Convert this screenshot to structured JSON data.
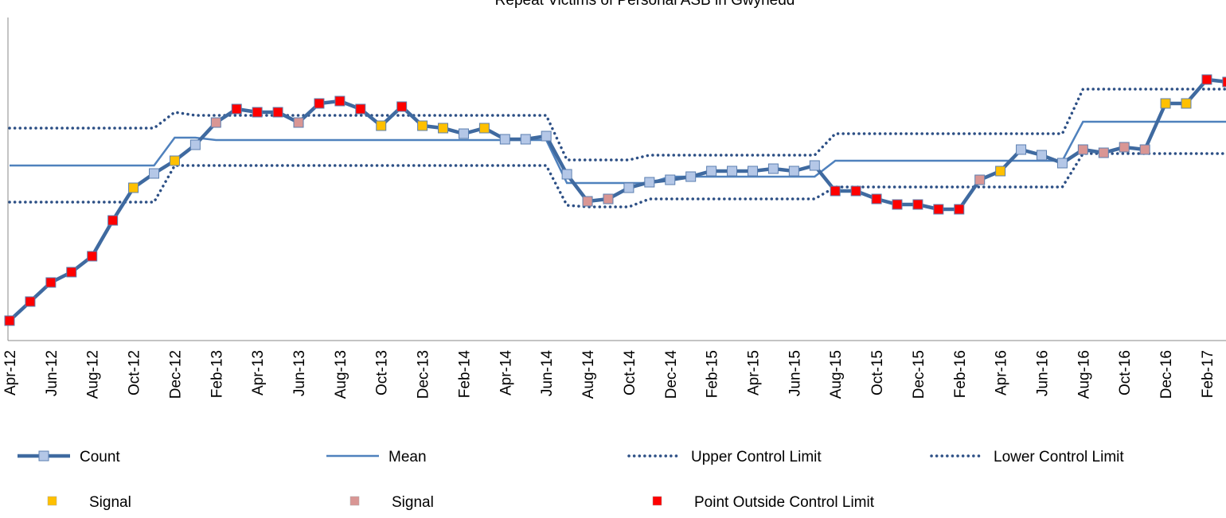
{
  "chart_data": {
    "type": "line",
    "title": "Repeat Victims of Personal ASB in Gwynedd",
    "categories": [
      "Apr-12",
      null,
      "Jun-12",
      null,
      "Aug-12",
      null,
      "Oct-12",
      null,
      "Dec-12",
      null,
      "Feb-13",
      null,
      "Apr-13",
      null,
      "Jun-13",
      null,
      "Aug-13",
      null,
      "Oct-13",
      null,
      "Dec-13",
      null,
      "Feb-14",
      null,
      "Apr-14",
      null,
      "Jun-14",
      null,
      "Aug-14",
      null,
      "Oct-14",
      null,
      "Dec-14",
      null,
      "Feb-15",
      null,
      "Apr-15",
      null,
      "Jun-15",
      null,
      "Aug-15",
      null,
      "Oct-15",
      null,
      "Dec-15",
      null,
      "Feb-16",
      null,
      "Apr-16",
      null,
      "Jun-16",
      null,
      "Aug-16",
      null,
      "Oct-16",
      null,
      "Dec-16",
      null,
      "Feb-17",
      null
    ],
    "ylim": [
      0,
      40
    ],
    "series": [
      {
        "name": "Count",
        "color": "#3f6aa0",
        "marker_color": "#b4c7e7",
        "values": [
          2.5,
          4.9,
          7.3,
          8.6,
          10.6,
          15.1,
          19.2,
          21.0,
          22.6,
          24.6,
          27.4,
          29.1,
          28.7,
          28.7,
          27.4,
          29.8,
          30.1,
          29.1,
          27.0,
          29.4,
          27.0,
          26.7,
          26.0,
          26.7,
          25.3,
          25.3,
          25.7,
          20.9,
          17.5,
          17.8,
          19.2,
          19.9,
          20.2,
          20.6,
          21.3,
          21.3,
          21.3,
          21.6,
          21.3,
          22.0,
          18.8,
          18.8,
          17.8,
          17.1,
          17.1,
          16.5,
          16.5,
          20.2,
          21.3,
          24.0,
          23.3,
          22.3,
          24.0,
          23.6,
          24.3,
          24.0,
          29.8,
          29.8,
          32.8,
          32.5
        ]
      },
      {
        "name": "Mean",
        "color": "#4f81bd",
        "values": [
          22.0,
          22.0,
          22.0,
          22.0,
          22.0,
          22.0,
          22.0,
          22.0,
          25.5,
          25.5,
          25.2,
          25.2,
          25.2,
          25.2,
          25.2,
          25.2,
          25.2,
          25.2,
          25.2,
          25.2,
          25.2,
          25.2,
          25.2,
          25.2,
          25.2,
          25.2,
          25.2,
          19.8,
          19.8,
          19.8,
          19.8,
          19.8,
          20.6,
          20.6,
          20.6,
          20.6,
          20.6,
          20.6,
          20.6,
          20.6,
          22.6,
          22.6,
          22.6,
          22.6,
          22.6,
          22.6,
          22.6,
          22.6,
          22.6,
          22.6,
          22.6,
          22.6,
          27.5,
          27.5,
          27.5,
          27.5,
          27.5,
          27.5,
          27.5,
          27.5
        ]
      },
      {
        "name": "Upper Control Limit",
        "color": "#2c4f85",
        "dotted": true,
        "values": [
          26.7,
          26.7,
          26.7,
          26.7,
          26.7,
          26.7,
          26.7,
          26.7,
          28.7,
          28.3,
          28.3,
          28.3,
          28.3,
          28.3,
          28.3,
          28.3,
          28.3,
          28.3,
          28.3,
          28.3,
          28.3,
          28.3,
          28.3,
          28.3,
          28.3,
          28.3,
          28.3,
          22.7,
          22.7,
          22.7,
          22.7,
          23.3,
          23.3,
          23.3,
          23.3,
          23.3,
          23.3,
          23.3,
          23.3,
          23.3,
          26.0,
          26.0,
          26.0,
          26.0,
          26.0,
          26.0,
          26.0,
          26.0,
          26.0,
          26.0,
          26.0,
          26.0,
          31.6,
          31.6,
          31.6,
          31.6,
          31.6,
          31.6,
          31.6,
          31.6
        ]
      },
      {
        "name": "Lower Control Limit",
        "color": "#2c4f85",
        "dotted": true,
        "values": [
          17.4,
          17.4,
          17.4,
          17.4,
          17.4,
          17.4,
          17.4,
          17.4,
          22.0,
          22.0,
          22.0,
          22.0,
          22.0,
          22.0,
          22.0,
          22.0,
          22.0,
          22.0,
          22.0,
          22.0,
          22.0,
          22.0,
          22.0,
          22.0,
          22.0,
          22.0,
          22.0,
          17.0,
          16.8,
          16.8,
          16.8,
          17.8,
          17.8,
          17.8,
          17.8,
          17.8,
          17.8,
          17.8,
          17.8,
          17.8,
          19.3,
          19.3,
          19.3,
          19.3,
          19.3,
          19.3,
          19.3,
          19.3,
          19.3,
          19.3,
          19.3,
          19.3,
          23.5,
          23.5,
          23.5,
          23.5,
          23.5,
          23.5,
          23.5,
          23.5
        ]
      }
    ],
    "markers": [
      {
        "name": "Signal",
        "color": "#ffc000"
      },
      {
        "name": "Signal",
        "color": "#d99694"
      },
      {
        "name": "Point Outside Control Limit",
        "color": "#ff0000"
      }
    ],
    "point_colors": [
      "#ff0000",
      "#ff0000",
      "#ff0000",
      "#ff0000",
      "#ff0000",
      "#ff0000",
      "#ffc000",
      "#b4c7e7",
      "#ffc000",
      "#b4c7e7",
      "#d99694",
      "#ff0000",
      "#ff0000",
      "#ff0000",
      "#d99694",
      "#ff0000",
      "#ff0000",
      "#ff0000",
      "#ffc000",
      "#ff0000",
      "#ffc000",
      "#ffc000",
      "#b4c7e7",
      "#ffc000",
      "#b4c7e7",
      "#b4c7e7",
      "#b4c7e7",
      "#b4c7e7",
      "#d99694",
      "#d99694",
      "#b4c7e7",
      "#b4c7e7",
      "#b4c7e7",
      "#b4c7e7",
      "#b4c7e7",
      "#b4c7e7",
      "#b4c7e7",
      "#b4c7e7",
      "#b4c7e7",
      "#b4c7e7",
      "#ff0000",
      "#ff0000",
      "#ff0000",
      "#ff0000",
      "#ff0000",
      "#ff0000",
      "#ff0000",
      "#d99694",
      "#ffc000",
      "#b4c7e7",
      "#b4c7e7",
      "#b4c7e7",
      "#d99694",
      "#d99694",
      "#d99694",
      "#d99694",
      "#ffc000",
      "#ffc000",
      "#ff0000",
      "#ff0000"
    ]
  }
}
